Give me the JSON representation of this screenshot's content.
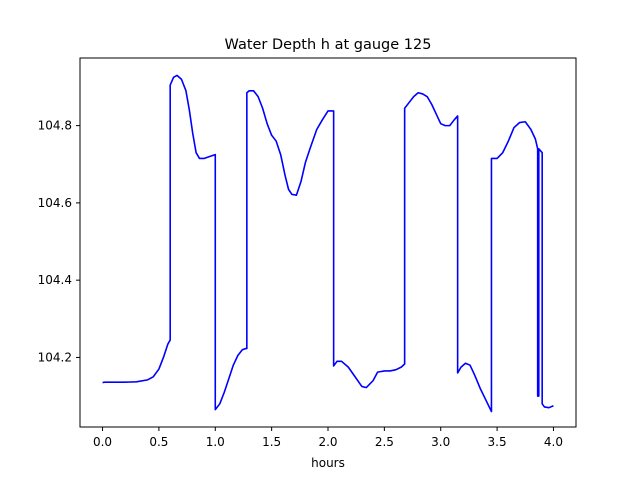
{
  "chart_data": {
    "type": "line",
    "title": "Water Depth h at gauge 125",
    "xlabel": "hours",
    "ylabel": "",
    "xlim": [
      -0.2,
      4.2
    ],
    "ylim": [
      104.02,
      104.975
    ],
    "xticks": [
      0.0,
      0.5,
      1.0,
      1.5,
      2.0,
      2.5,
      3.0,
      3.5,
      4.0
    ],
    "xtick_labels": [
      "0.0",
      "0.5",
      "1.0",
      "1.5",
      "2.0",
      "2.5",
      "3.0",
      "3.5",
      "4.0"
    ],
    "yticks": [
      104.2,
      104.4,
      104.6,
      104.8
    ],
    "ytick_labels": [
      "104.2",
      "104.4",
      "104.6",
      "104.8"
    ],
    "grid": false,
    "legend": "none",
    "series": [
      {
        "color": "#0000ff",
        "x": [
          0.0,
          0.02,
          0.2,
          0.3,
          0.4,
          0.45,
          0.5,
          0.54,
          0.58,
          0.6,
          0.6,
          0.63,
          0.66,
          0.7,
          0.74,
          0.77,
          0.8,
          0.83,
          0.86,
          0.9,
          0.95,
          1.0,
          1.0,
          1.04,
          1.08,
          1.12,
          1.16,
          1.2,
          1.24,
          1.27,
          1.28,
          1.28,
          1.3,
          1.34,
          1.38,
          1.42,
          1.46,
          1.5,
          1.54,
          1.58,
          1.62,
          1.65,
          1.68,
          1.72,
          1.76,
          1.8,
          1.84,
          1.9,
          1.95,
          2.0,
          2.03,
          2.05,
          2.05,
          2.08,
          2.12,
          2.18,
          2.24,
          2.3,
          2.34,
          2.4,
          2.44,
          2.5,
          2.55,
          2.6,
          2.65,
          2.68,
          2.68,
          2.72,
          2.76,
          2.8,
          2.84,
          2.88,
          2.92,
          2.96,
          3.0,
          3.04,
          3.08,
          3.12,
          3.15,
          3.15,
          3.18,
          3.22,
          3.26,
          3.3,
          3.35,
          3.4,
          3.45,
          3.45,
          3.5,
          3.55,
          3.6,
          3.65,
          3.7,
          3.75,
          3.8,
          3.84,
          3.86,
          3.86,
          3.87,
          3.87,
          3.9,
          3.9,
          3.92,
          3.96,
          4.0
        ],
        "y": [
          104.135,
          104.136,
          104.136,
          104.137,
          104.142,
          104.15,
          104.17,
          104.2,
          104.235,
          104.245,
          104.905,
          104.925,
          104.93,
          104.92,
          104.89,
          104.84,
          104.78,
          104.73,
          104.715,
          104.715,
          104.72,
          104.725,
          104.065,
          104.08,
          104.11,
          104.145,
          104.18,
          104.205,
          104.22,
          104.223,
          104.223,
          104.885,
          104.89,
          104.89,
          104.875,
          104.845,
          104.805,
          104.775,
          104.76,
          104.725,
          104.67,
          104.635,
          104.622,
          104.62,
          104.655,
          104.705,
          104.74,
          104.79,
          104.815,
          104.838,
          104.838,
          104.838,
          104.178,
          104.19,
          104.19,
          104.175,
          104.15,
          104.125,
          104.122,
          104.14,
          104.162,
          104.165,
          104.165,
          104.168,
          104.175,
          104.183,
          104.845,
          104.86,
          104.875,
          104.885,
          104.882,
          104.875,
          104.855,
          104.83,
          104.805,
          104.8,
          104.8,
          104.815,
          104.825,
          104.16,
          104.175,
          104.185,
          104.18,
          104.155,
          104.12,
          104.09,
          104.06,
          104.715,
          104.715,
          104.73,
          104.76,
          104.795,
          104.808,
          104.81,
          104.79,
          104.765,
          104.74,
          104.1,
          104.1,
          104.74,
          104.73,
          104.08,
          104.072,
          104.07,
          104.075
        ]
      }
    ]
  }
}
